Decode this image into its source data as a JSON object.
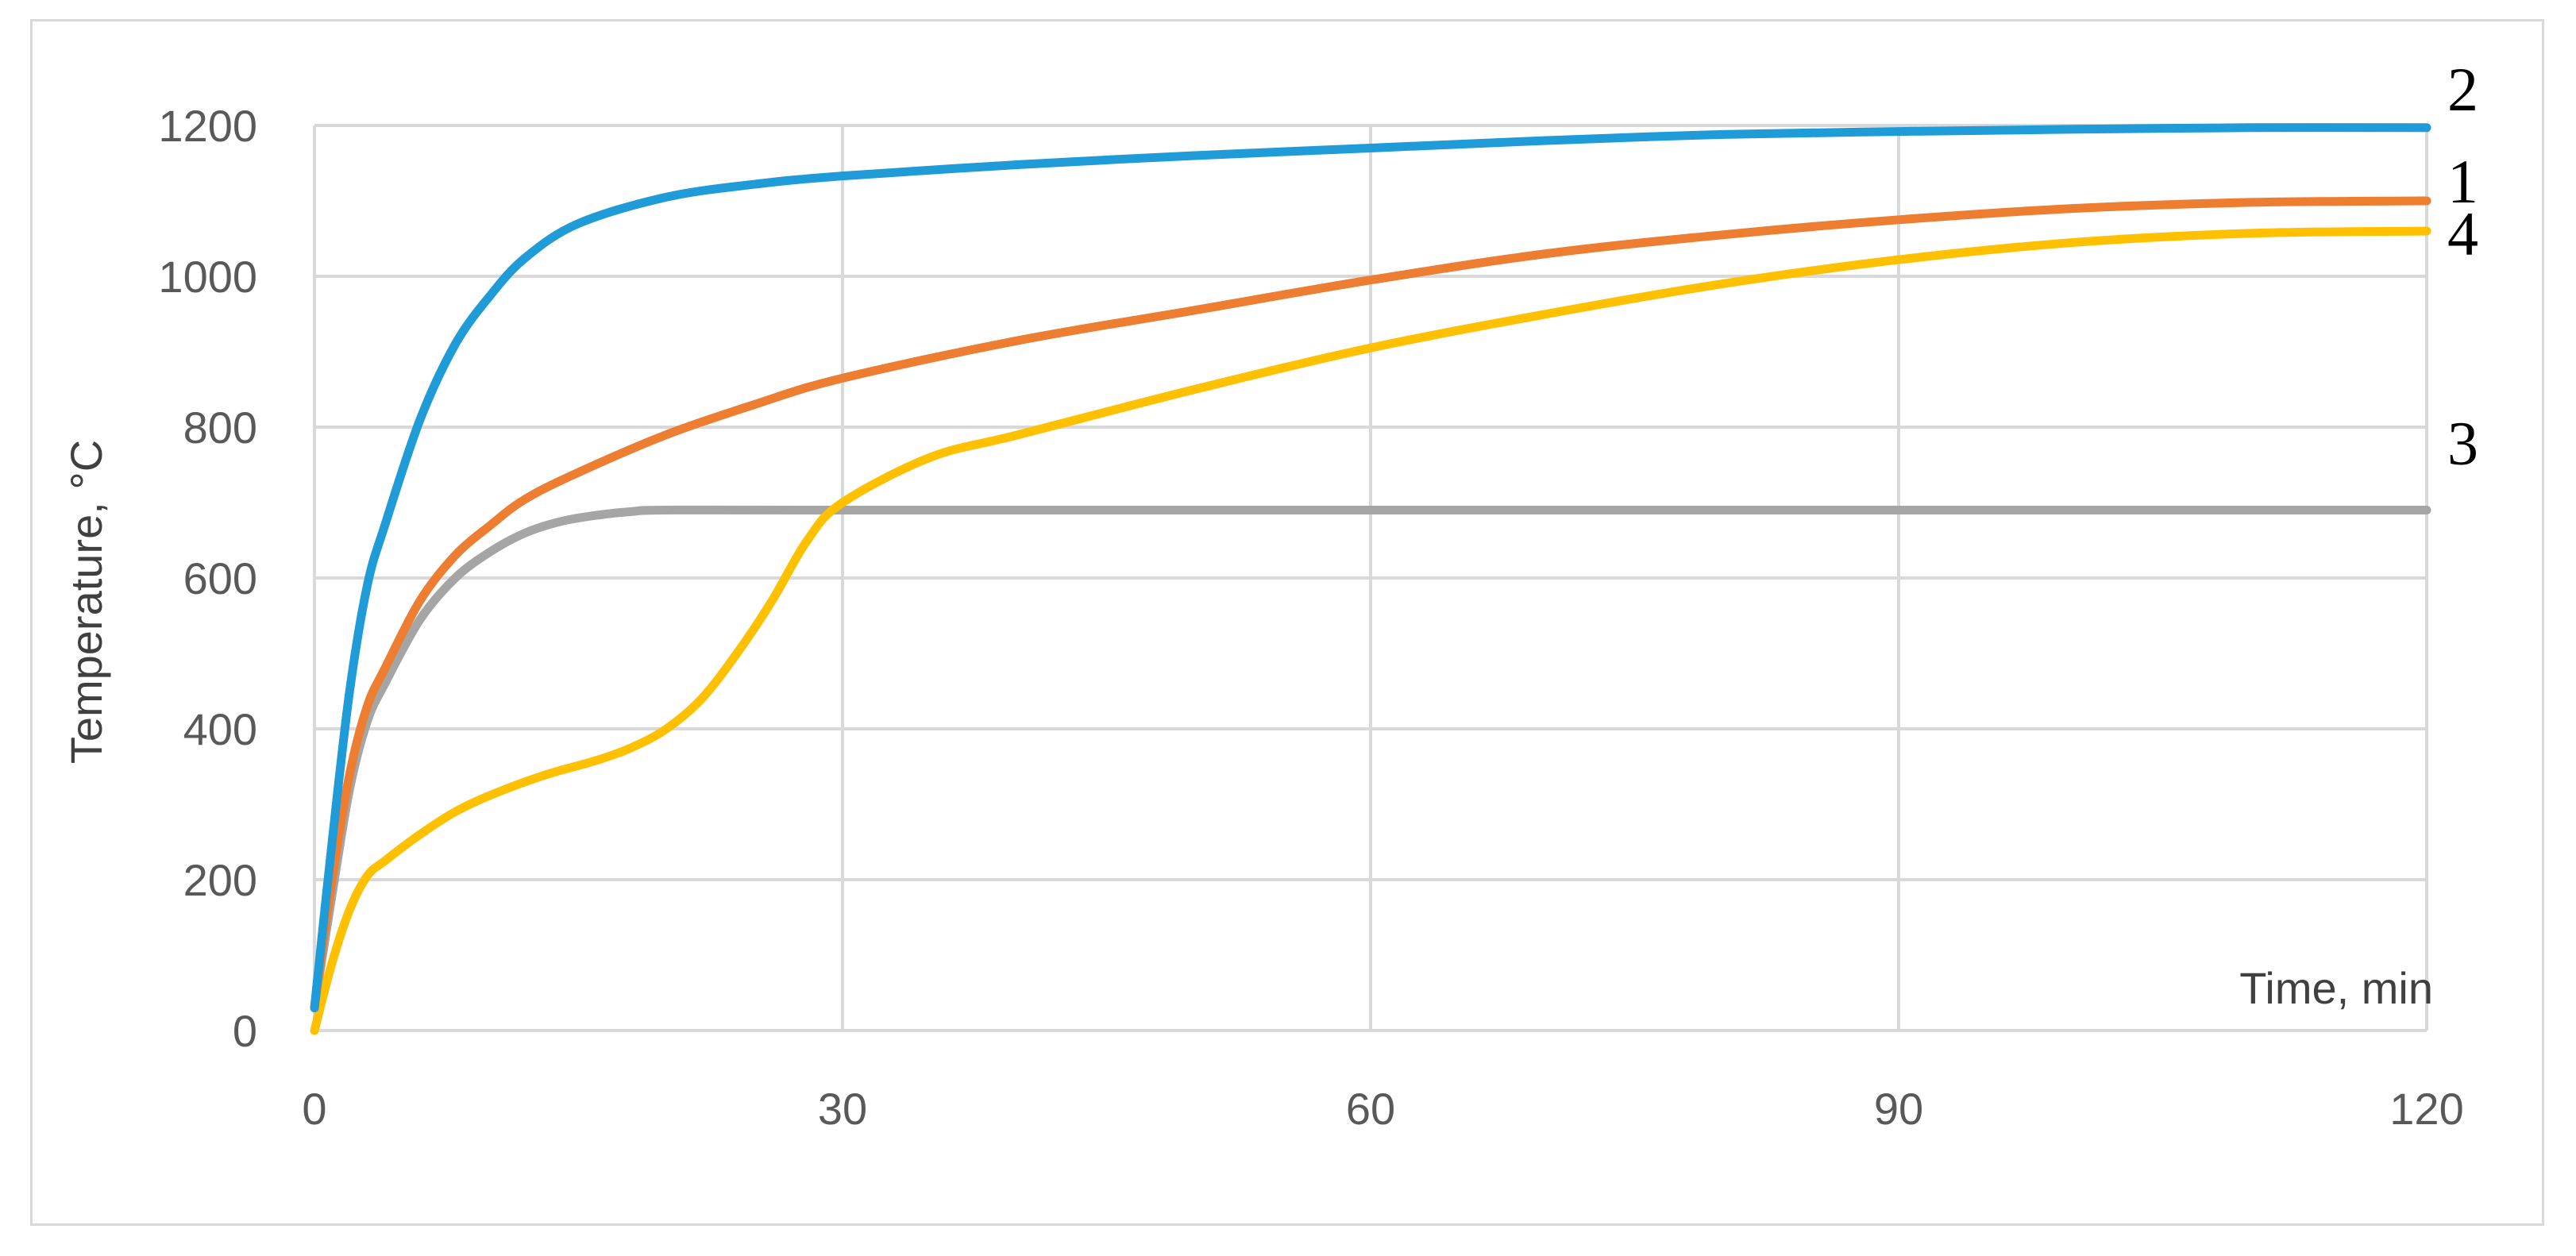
{
  "chart_data": {
    "type": "line",
    "title": "",
    "xlabel": "Time, min",
    "ylabel": "Temperature, °C",
    "xlim": [
      0,
      120
    ],
    "ylim": [
      0,
      1200
    ],
    "x_ticks": [
      "0",
      "30",
      "60",
      "90",
      "120"
    ],
    "y_ticks": [
      "0",
      "200",
      "400",
      "600",
      "800",
      "1000",
      "1200"
    ],
    "grid": true,
    "legend": "none",
    "series": [
      {
        "name": "1",
        "color": "#ED7D31",
        "x": [
          0,
          1,
          2,
          3,
          4,
          6,
          8,
          10,
          12,
          15,
          20,
          25,
          30,
          40,
          50,
          60,
          70,
          80,
          90,
          100,
          110,
          120
        ],
        "values": [
          30,
          200,
          340,
          430,
          480,
          570,
          630,
          670,
          705,
          740,
          790,
          830,
          865,
          915,
          955,
          995,
          1030,
          1055,
          1075,
          1090,
          1098,
          1100
        ]
      },
      {
        "name": "2",
        "color": "#1F9BD7",
        "x": [
          0,
          1,
          2,
          3,
          4,
          6,
          8,
          10,
          12,
          15,
          20,
          25,
          30,
          40,
          50,
          60,
          70,
          80,
          90,
          100,
          110,
          120
        ],
        "values": [
          30,
          250,
          450,
          590,
          670,
          810,
          910,
          975,
          1025,
          1070,
          1105,
          1122,
          1133,
          1148,
          1160,
          1170,
          1180,
          1188,
          1192,
          1195,
          1197,
          1197
        ]
      },
      {
        "name": "3",
        "color": "#A5A5A5",
        "x": [
          0,
          1,
          2,
          3,
          4,
          6,
          8,
          10,
          12,
          14,
          16,
          18,
          20,
          30,
          60,
          90,
          120
        ],
        "values": [
          30,
          180,
          320,
          410,
          460,
          545,
          600,
          635,
          660,
          675,
          683,
          688,
          690,
          690,
          690,
          690,
          690
        ]
      },
      {
        "name": "4",
        "color": "#FFC000",
        "x": [
          0,
          1,
          2,
          3,
          4,
          6,
          8,
          10,
          13,
          16,
          18,
          20,
          22,
          24,
          26,
          28,
          30,
          35,
          40,
          50,
          60,
          70,
          80,
          90,
          100,
          110,
          120
        ],
        "values": [
          0,
          90,
          160,
          205,
          225,
          260,
          290,
          312,
          338,
          358,
          375,
          400,
          440,
          500,
          570,
          650,
          700,
          760,
          790,
          850,
          905,
          950,
          990,
          1022,
          1045,
          1057,
          1060
        ]
      }
    ]
  }
}
